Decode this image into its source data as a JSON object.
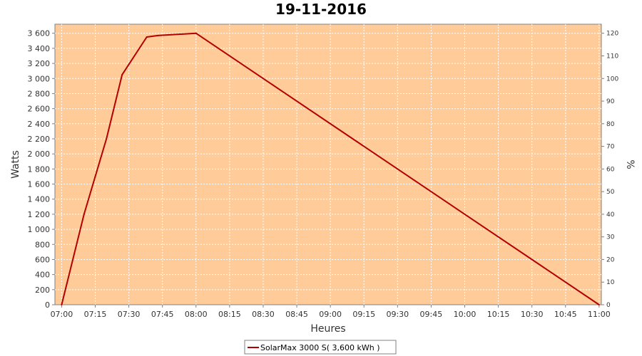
{
  "chart_data": {
    "type": "line",
    "title": "19-11-2016",
    "xlabel": "Heures",
    "ylabel": "Watts",
    "y2label": "%",
    "x_ticks": [
      "07:00",
      "07:15",
      "07:30",
      "07:45",
      "08:00",
      "08:15",
      "08:30",
      "08:45",
      "09:00",
      "09:15",
      "09:30",
      "09:45",
      "10:00",
      "10:15",
      "10:30",
      "10:45",
      "11:00"
    ],
    "y_ticks": [
      "0",
      "200",
      "400",
      "600",
      "800",
      "1 000",
      "1 200",
      "1 400",
      "1 600",
      "1 800",
      "2 000",
      "2 200",
      "2 400",
      "2 600",
      "2 800",
      "3 000",
      "3 200",
      "3 400",
      "3 600"
    ],
    "y_tick_values": [
      0,
      200,
      400,
      600,
      800,
      1000,
      1200,
      1400,
      1600,
      1800,
      2000,
      2200,
      2400,
      2600,
      2800,
      3000,
      3200,
      3400,
      3600
    ],
    "y2_ticks": [
      "0",
      "10",
      "20",
      "30",
      "40",
      "50",
      "60",
      "70",
      "80",
      "90",
      "100",
      "110",
      "120"
    ],
    "y2_tick_values": [
      0,
      10,
      20,
      30,
      40,
      50,
      60,
      70,
      80,
      90,
      100,
      110,
      120
    ],
    "xlim": [
      "06:57",
      "11:01"
    ],
    "ylim": [
      0,
      3720
    ],
    "y2lim": [
      0,
      124
    ],
    "grid": true,
    "background_color": "#ffcc99",
    "series": [
      {
        "name": "SolarMax 3000 S( 3,600 kWh )",
        "color": "#b30000",
        "x": [
          "07:00",
          "07:10",
          "07:20",
          "07:27",
          "07:38",
          "07:43",
          "08:00",
          "11:00"
        ],
        "y": [
          0,
          1200,
          2200,
          3050,
          3550,
          3570,
          3600,
          0
        ]
      }
    ],
    "legend_position": "bottom"
  }
}
